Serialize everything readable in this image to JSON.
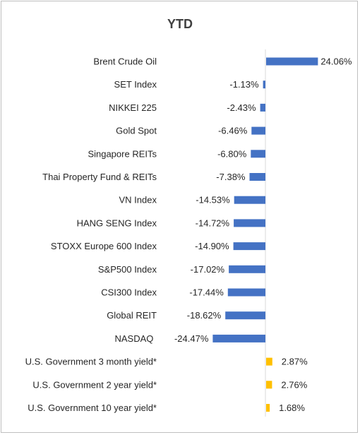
{
  "chart_data": {
    "type": "bar",
    "orientation": "horizontal",
    "title": "YTD",
    "categories": [
      "Brent Crude Oil",
      "SET Index",
      "NIKKEI 225",
      "Gold Spot",
      "Singapore REITs",
      "Thai Property Fund & REITs",
      "VN Index",
      "HANG SENG Index",
      "STOXX Europe 600 Index",
      "S&P500 Index",
      "CSI300 Index",
      "Global REIT",
      "NASDAQ",
      "U.S. Government 3 month yield*",
      "U.S. Government 2 year yield*",
      "U.S. Government 10 year yield*"
    ],
    "values": [
      24.06,
      -1.13,
      -2.43,
      -6.46,
      -6.8,
      -7.38,
      -14.53,
      -14.72,
      -14.9,
      -17.02,
      -17.44,
      -18.62,
      -24.47,
      2.87,
      2.76,
      1.68
    ],
    "labels": [
      "24.06%",
      "-1.13%",
      "-2.43%",
      "-6.46%",
      "-6.80%",
      "-7.38%",
      "-14.53%",
      "-14.72%",
      "-14.90%",
      "-17.02%",
      "-17.44%",
      "-18.62%",
      "-24.47%",
      "2.87%",
      "2.76%",
      "1.68%"
    ],
    "colors": [
      "#4472c4",
      "#4472c4",
      "#4472c4",
      "#4472c4",
      "#4472c4",
      "#4472c4",
      "#4472c4",
      "#4472c4",
      "#4472c4",
      "#4472c4",
      "#4472c4",
      "#4472c4",
      "#4472c4",
      "#ffc000",
      "#ffc000",
      "#ffc000"
    ],
    "xlabel": "",
    "ylabel": "",
    "grid": false,
    "legend": "none"
  }
}
